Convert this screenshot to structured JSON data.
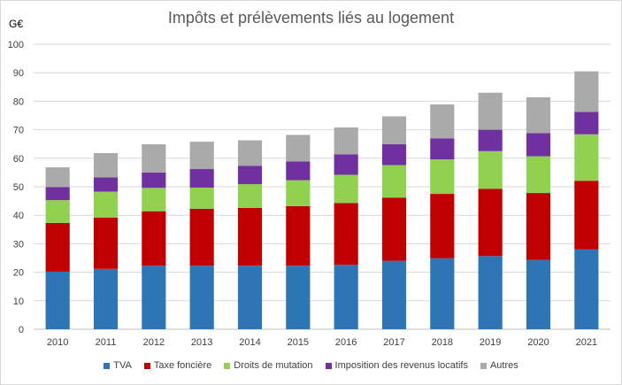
{
  "chart_data": {
    "type": "bar",
    "stacked": true,
    "title": "Impôts et prélèvements liés au logement",
    "unit_label": "G€",
    "ylim": [
      0,
      100
    ],
    "yticks": [
      0,
      10,
      20,
      30,
      40,
      50,
      60,
      70,
      80,
      90,
      100
    ],
    "categories": [
      "2010",
      "2011",
      "2012",
      "2013",
      "2014",
      "2015",
      "2016",
      "2017",
      "2018",
      "2019",
      "2020",
      "2021"
    ],
    "series": [
      {
        "name": "TVA",
        "color": "#2e75b6",
        "values": [
          20.2,
          21.2,
          22.3,
          22.3,
          22.3,
          22.3,
          22.6,
          24.0,
          24.9,
          25.7,
          24.3,
          28.0
        ]
      },
      {
        "name": "Taxe foncière",
        "color": "#c00000",
        "values": [
          17.1,
          18.0,
          19.1,
          20.0,
          20.3,
          20.9,
          21.7,
          22.2,
          22.6,
          23.6,
          23.5,
          24.1
        ]
      },
      {
        "name": "Droits de mutation",
        "color": "#92d050",
        "values": [
          8.0,
          9.1,
          8.2,
          7.4,
          8.3,
          9.1,
          9.9,
          11.4,
          12.1,
          13.2,
          12.9,
          16.3
        ]
      },
      {
        "name": "Imposition des revenus locatifs",
        "color": "#7030a0",
        "values": [
          4.6,
          5.0,
          5.4,
          6.5,
          6.4,
          6.6,
          7.2,
          7.3,
          7.4,
          7.5,
          8.1,
          7.9
        ]
      },
      {
        "name": "Autres",
        "color": "#aaaaaa",
        "values": [
          6.9,
          8.5,
          9.9,
          9.6,
          9.0,
          9.3,
          9.4,
          9.8,
          11.9,
          13.0,
          12.6,
          14.2
        ]
      }
    ]
  }
}
